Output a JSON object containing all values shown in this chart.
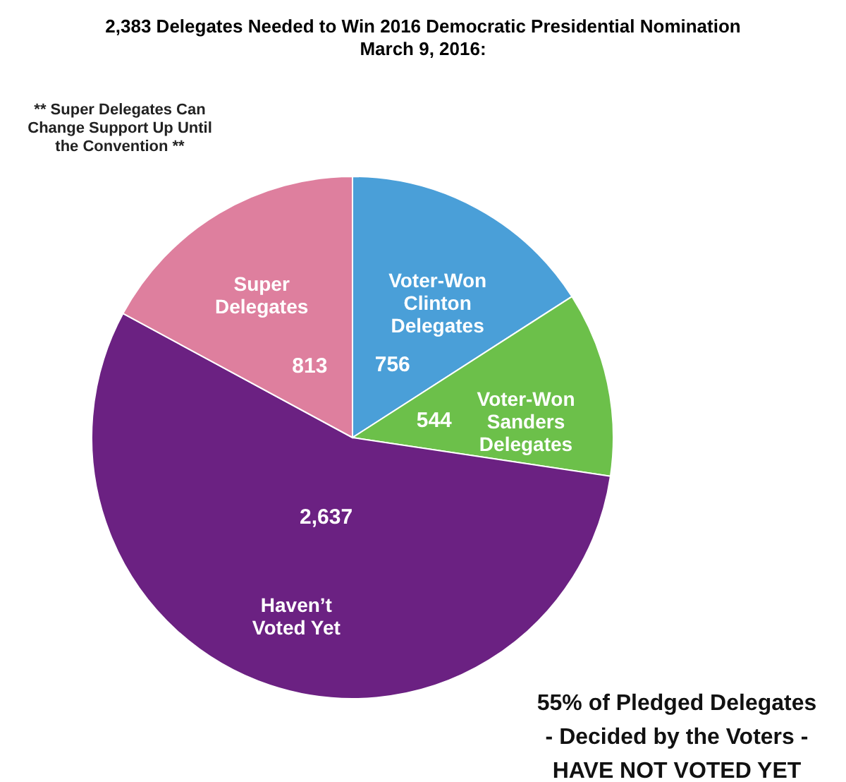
{
  "chart_data": {
    "type": "pie",
    "title": "2,383 Delegates Needed to Win 2016 Democratic Presidential Nomination",
    "subtitle": "March 9, 2016:",
    "categories": [
      "Voter-Won Clinton Delegates",
      "Voter-Won Sanders Delegates",
      "Haven’t Voted Yet",
      "Super Delegates"
    ],
    "values": [
      756,
      544,
      2637,
      813
    ],
    "value_labels": [
      "756",
      "544",
      "2,637",
      "813"
    ],
    "colors": [
      "#4a9fd8",
      "#6cc04a",
      "#6b2182",
      "#de7f9e"
    ],
    "annotations": [
      "** Super Delegates Can Change Support Up Until the Convention **",
      "55% of Pledged Delegates",
      "- Decided by the Voters -",
      "HAVE NOT VOTED YET"
    ]
  }
}
